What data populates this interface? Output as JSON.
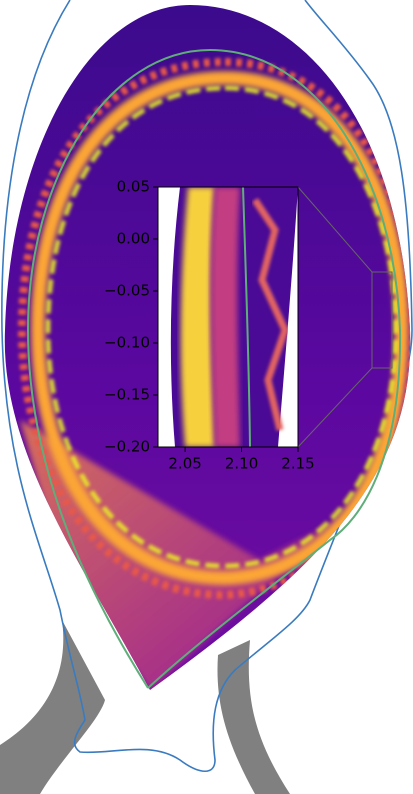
{
  "chart_data": {
    "type": "inset",
    "xlim": [
      2.026,
      2.15
    ],
    "ylim": [
      -0.2,
      0.05
    ],
    "xticks": [
      2.05,
      {
        "value": 2.1,
        "label": "2.10"
      },
      2.15
    ],
    "yticks": [
      0.05,
      {
        "value": 0,
        "label": "0.00"
      },
      {
        "value": -0.05,
        "label": "−0.05"
      },
      {
        "value": -0.1,
        "label": "−0.10"
      },
      {
        "value": -0.15,
        "label": "−0.15"
      },
      {
        "value": -0.2,
        "label": "−0.20"
      }
    ]
  }
}
